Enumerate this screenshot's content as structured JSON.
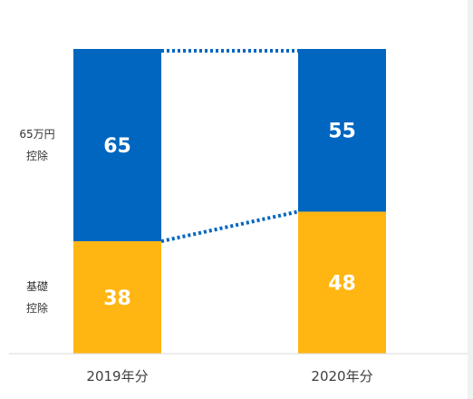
{
  "chart_data": {
    "type": "bar",
    "stacked": true,
    "categories": [
      "2019年分",
      "2020年分"
    ],
    "series": [
      {
        "name": "基礎控除",
        "name_lines": [
          "基礎",
          "控除"
        ],
        "values": [
          38,
          48
        ],
        "color": "#FFB612"
      },
      {
        "name": "65万円控除",
        "name_lines": [
          "65万円",
          "控除"
        ],
        "values": [
          65,
          55
        ],
        "color": "#0066BF"
      }
    ],
    "ylim": [
      0,
      103
    ],
    "grid": false,
    "legend": "left",
    "connector": {
      "style": "dotted",
      "color": "#0066BF"
    }
  }
}
